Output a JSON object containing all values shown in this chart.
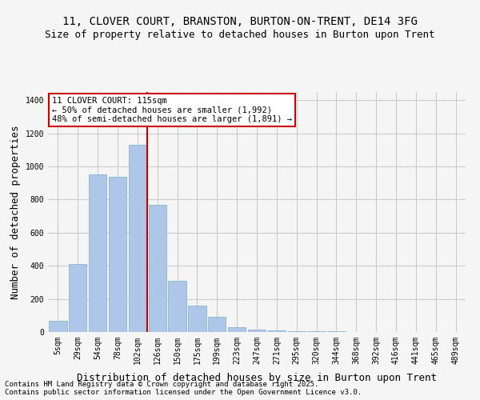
{
  "title_line1": "11, CLOVER COURT, BRANSTON, BURTON-ON-TRENT, DE14 3FG",
  "title_line2": "Size of property relative to detached houses in Burton upon Trent",
  "xlabel": "Distribution of detached houses by size in Burton upon Trent",
  "ylabel": "Number of detached properties",
  "annotation_title": "11 CLOVER COURT: 115sqm",
  "annotation_line2": "← 50% of detached houses are smaller (1,992)",
  "annotation_line3": "48% of semi-detached houses are larger (1,891) →",
  "footer_line1": "Contains HM Land Registry data © Crown copyright and database right 2025.",
  "footer_line2": "Contains public sector information licensed under the Open Government Licence v3.0.",
  "bar_color": "#aec6e8",
  "bar_edge_color": "#7aaac8",
  "vline_color": "#cc0000",
  "annotation_box_color": "#cc0000",
  "background_color": "#f5f5f5",
  "categories": [
    "5sqm",
    "29sqm",
    "54sqm",
    "78sqm",
    "102sqm",
    "126sqm",
    "150sqm",
    "175sqm",
    "199sqm",
    "223sqm",
    "247sqm",
    "271sqm",
    "295sqm",
    "320sqm",
    "344sqm",
    "368sqm",
    "392sqm",
    "416sqm",
    "441sqm",
    "465sqm",
    "489sqm"
  ],
  "values": [
    70,
    410,
    950,
    940,
    1130,
    770,
    310,
    160,
    90,
    30,
    15,
    8,
    5,
    3,
    3,
    2,
    2,
    1,
    1,
    1,
    1
  ],
  "vline_x": 4.5,
  "ylim": [
    0,
    1450
  ],
  "yticks": [
    0,
    200,
    400,
    600,
    800,
    1000,
    1200,
    1400
  ],
  "grid_color": "#cccccc",
  "title_fontsize": 10,
  "subtitle_fontsize": 9,
  "axis_label_fontsize": 9,
  "tick_fontsize": 7
}
